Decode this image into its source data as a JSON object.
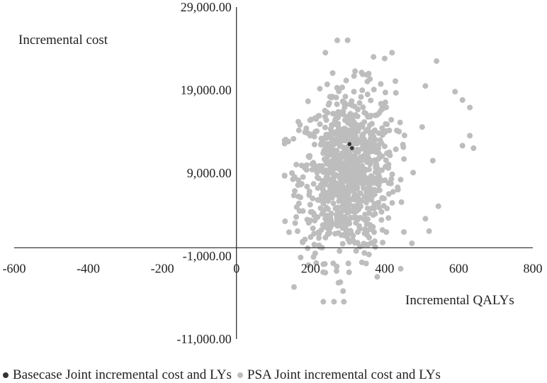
{
  "chart_data": {
    "type": "scatter",
    "xlabel": "Incremental QALYs",
    "ylabel": "Incremental cost",
    "xlim": [
      -600,
      800
    ],
    "ylim": [
      -11000,
      29000
    ],
    "x_ticks": [
      -600,
      -400,
      -200,
      0,
      200,
      400,
      600,
      800
    ],
    "y_ticks": [
      -11000,
      -1000,
      9000,
      19000,
      29000
    ],
    "x_tick_labels": [
      "-600",
      "-400",
      "-200",
      "0",
      "200",
      "400",
      "600",
      "800"
    ],
    "y_tick_labels": [
      "-11,000.00",
      "-1,000.00",
      "9,000.00",
      "19,000.00",
      "29,000.00"
    ],
    "grid": false,
    "legend_position": "bottom",
    "series": [
      {
        "name": "Basecase Joint incremental cost and LYs",
        "color": "#333333",
        "points": [
          [
            305,
            12500
          ],
          [
            312,
            12000
          ]
        ]
      },
      {
        "name": "PSA Joint incremental cost and LYs",
        "color": "#bdbdbd",
        "points_note_free": true,
        "distribution": {
          "count": 900,
          "x_mean": 300,
          "x_sd": 75,
          "y_mean": 9000,
          "y_sd": 5500,
          "x_range": [
            130,
            640
          ],
          "y_range": [
            -6500,
            25000
          ]
        },
        "points": [
          [
            300,
            25000
          ],
          [
            240,
            23500
          ],
          [
            370,
            23000
          ],
          [
            420,
            23500
          ],
          [
            400,
            22800
          ],
          [
            540,
            22500
          ],
          [
            510,
            19500
          ],
          [
            590,
            18800
          ],
          [
            610,
            17800
          ],
          [
            630,
            16900
          ],
          [
            630,
            13500
          ],
          [
            610,
            12300
          ],
          [
            640,
            12000
          ],
          [
            530,
            10500
          ],
          [
            545,
            5000
          ],
          [
            510,
            3500
          ],
          [
            520,
            2000
          ],
          [
            140,
            12800
          ],
          [
            150,
            9000
          ],
          [
            155,
            6300
          ],
          [
            165,
            2000
          ],
          [
            185,
            1000
          ],
          [
            195,
            3000
          ],
          [
            290,
            -6500
          ],
          [
            380,
            -3500
          ],
          [
            240,
            -3000
          ],
          [
            270,
            -2800
          ],
          [
            350,
            -1900
          ]
        ]
      }
    ]
  }
}
